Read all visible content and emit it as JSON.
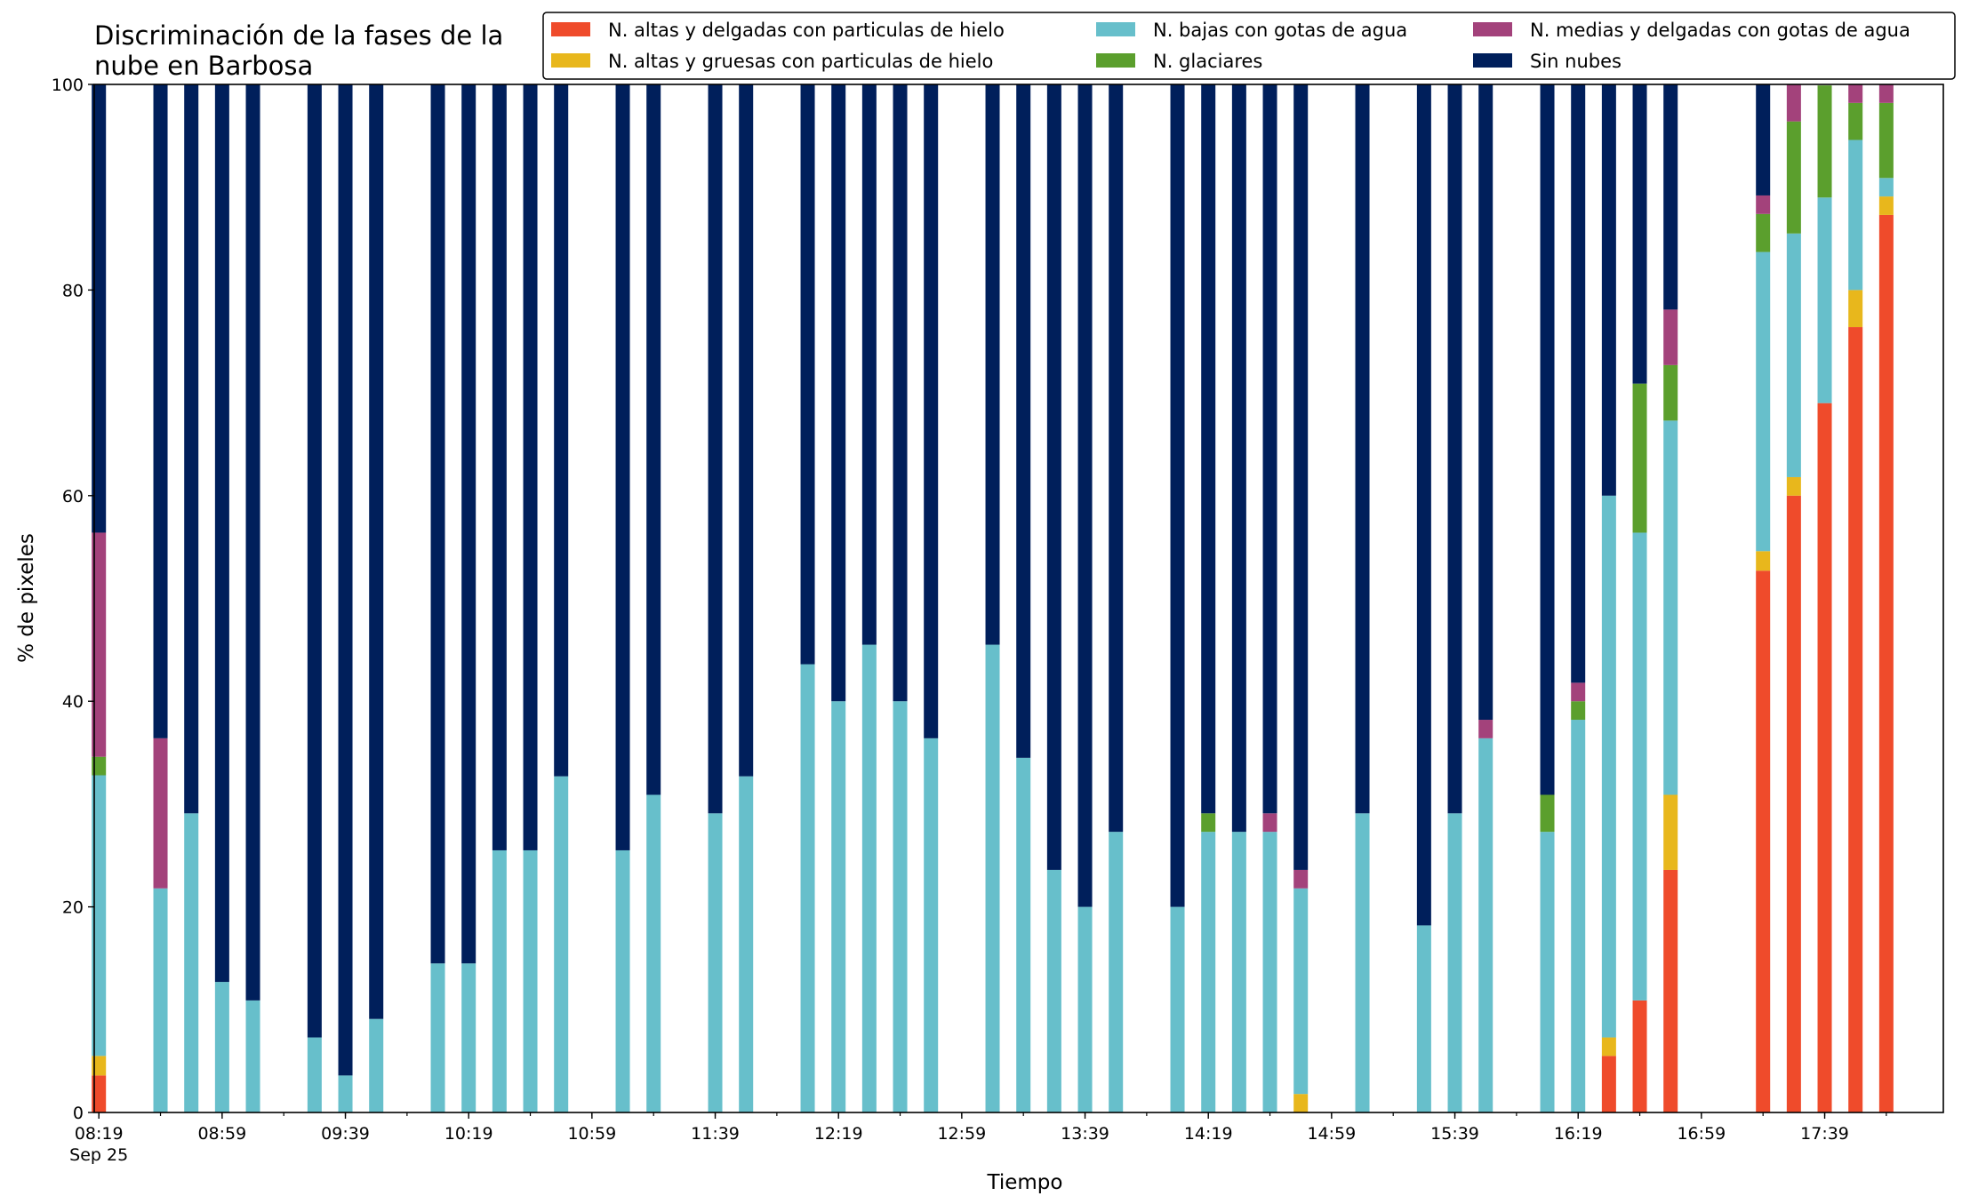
{
  "chart_data": {
    "type": "bar",
    "stacked": true,
    "title_lines": [
      "Discriminación de la fases de la",
      "nube en Barbosa"
    ],
    "xlabel": "Tiempo",
    "ylabel": "% de pixeles",
    "ylim": [
      0,
      100
    ],
    "yticks": [
      0,
      20,
      40,
      60,
      80,
      100
    ],
    "grid": false,
    "legend_position": "top-right",
    "x_minutes": [
      499,
      509,
      519,
      529,
      539,
      549,
      559,
      569,
      579,
      589,
      599,
      609,
      619,
      629,
      639,
      649,
      659,
      669,
      679,
      689,
      699,
      709,
      719,
      729,
      739,
      749,
      759,
      769,
      779,
      789,
      799,
      809,
      819,
      829,
      839,
      849,
      859,
      869,
      879,
      889,
      899,
      909,
      919,
      929,
      939,
      949,
      959,
      969,
      979,
      989,
      999,
      1009,
      1019,
      1029,
      1039,
      1049,
      1059,
      1069,
      1079,
      1089
    ],
    "xticks_major": [
      {
        "minute": 499,
        "label": "08:19",
        "sublabel": "Sep 25"
      },
      {
        "minute": 539,
        "label": "08:59",
        "sublabel": ""
      },
      {
        "minute": 579,
        "label": "09:39",
        "sublabel": ""
      },
      {
        "minute": 619,
        "label": "10:19",
        "sublabel": ""
      },
      {
        "minute": 659,
        "label": "10:59",
        "sublabel": ""
      },
      {
        "minute": 699,
        "label": "11:39",
        "sublabel": ""
      },
      {
        "minute": 739,
        "label": "12:19",
        "sublabel": ""
      },
      {
        "minute": 779,
        "label": "12:59",
        "sublabel": ""
      },
      {
        "minute": 819,
        "label": "13:39",
        "sublabel": ""
      },
      {
        "minute": 859,
        "label": "14:19",
        "sublabel": ""
      },
      {
        "minute": 899,
        "label": "14:59",
        "sublabel": ""
      },
      {
        "minute": 939,
        "label": "15:39",
        "sublabel": ""
      },
      {
        "minute": 979,
        "label": "16:19",
        "sublabel": ""
      },
      {
        "minute": 1019,
        "label": "16:59",
        "sublabel": ""
      },
      {
        "minute": 1059,
        "label": "17:39",
        "sublabel": ""
      }
    ],
    "xlim_minutes": [
      497.5,
      1097.5
    ],
    "series": [
      {
        "name": "N. altas y delgadas con particulas de hielo",
        "color": "#ef4b2b",
        "values": [
          3.6,
          0,
          0,
          0,
          0,
          0,
          0,
          0,
          0,
          0,
          0,
          0,
          0,
          0,
          0,
          0,
          0,
          0,
          0,
          0,
          0,
          0,
          0,
          0,
          0,
          0,
          0,
          0,
          0,
          0,
          0,
          0,
          0,
          0,
          0,
          0,
          0,
          0,
          0,
          0,
          0,
          0,
          0,
          0,
          0,
          0,
          0,
          0,
          0,
          5.5,
          10.9,
          23.6,
          0,
          0,
          52.7,
          60,
          69,
          76.4,
          87.3,
          0
        ]
      },
      {
        "name": "N. altas y gruesas con particulas de hielo",
        "color": "#e8b71c",
        "values": [
          1.9,
          0,
          0,
          0,
          0,
          0,
          0,
          0,
          0,
          0,
          0,
          0,
          0,
          0,
          0,
          0,
          0,
          0,
          0,
          0,
          0,
          0,
          0,
          0,
          0,
          0,
          0,
          0,
          0,
          0,
          0,
          0,
          0,
          0,
          0,
          0,
          0,
          0,
          0,
          1.8,
          0,
          0,
          0,
          0,
          0,
          0,
          0,
          0,
          0,
          1.8,
          0,
          7.3,
          0,
          0,
          1.9,
          1.8,
          0,
          3.6,
          1.8,
          0
        ]
      },
      {
        "name": "N. bajas con gotas de agua",
        "color": "#67bfcb",
        "values": [
          27.3,
          0,
          21.8,
          29.1,
          12.7,
          10.9,
          0,
          7.3,
          3.6,
          9.1,
          0,
          14.5,
          14.5,
          25.5,
          25.5,
          32.7,
          0,
          25.5,
          30.9,
          0,
          29.1,
          32.7,
          0,
          43.6,
          40,
          45.5,
          40,
          36.4,
          0,
          45.5,
          34.5,
          23.6,
          20,
          27.3,
          0,
          20,
          27.3,
          27.3,
          27.3,
          20,
          0,
          29.1,
          0,
          18.2,
          29.1,
          36.4,
          0,
          27.3,
          38.2,
          52.7,
          45.5,
          36.4,
          0,
          0,
          29.1,
          23.7,
          20,
          14.6,
          1.8,
          0
        ]
      },
      {
        "name": "N. glaciares",
        "color": "#5b9f2d",
        "values": [
          1.8,
          0,
          0,
          0,
          0,
          0,
          0,
          0,
          0,
          0,
          0,
          0,
          0,
          0,
          0,
          0,
          0,
          0,
          0,
          0,
          0,
          0,
          0,
          0,
          0,
          0,
          0,
          0,
          0,
          0,
          0,
          0,
          0,
          0,
          0,
          0,
          1.8,
          0,
          0,
          0,
          0,
          0,
          0,
          0,
          0,
          0,
          0,
          3.6,
          1.8,
          0,
          14.5,
          5.4,
          0,
          0,
          3.7,
          10.9,
          10.9,
          3.6,
          7.3,
          0
        ]
      },
      {
        "name": "N. medias y delgadas con gotas de agua",
        "color": "#a3427b",
        "values": [
          21.8,
          0,
          14.6,
          0,
          0,
          0,
          0,
          0,
          0,
          0,
          0,
          0,
          0,
          0,
          0,
          0,
          0,
          0,
          0,
          0,
          0,
          0,
          0,
          0,
          0,
          0,
          0,
          0,
          0,
          0,
          0,
          0,
          0,
          0,
          0,
          0,
          0,
          0,
          1.8,
          1.8,
          0,
          0,
          0,
          0,
          0,
          1.8,
          0,
          0,
          1.8,
          0,
          0,
          5.4,
          0,
          0,
          1.8,
          3.6,
          0,
          1.8,
          1.8,
          0
        ]
      },
      {
        "name": "Sin nubes",
        "color": "#001f5b",
        "values": [
          43.6,
          0,
          63.6,
          70.9,
          87.3,
          89.1,
          0,
          92.7,
          96.4,
          90.9,
          0,
          85.5,
          85.5,
          74.5,
          74.5,
          67.3,
          0,
          74.5,
          69.1,
          0,
          70.9,
          67.3,
          0,
          56.4,
          60,
          54.5,
          60,
          63.6,
          0,
          54.5,
          65.5,
          76.4,
          80,
          72.7,
          0,
          80,
          70.9,
          72.7,
          70.9,
          76.4,
          0,
          70.9,
          0,
          81.8,
          70.9,
          61.8,
          0,
          69.1,
          58.2,
          40,
          29.1,
          21.9,
          0,
          0,
          10.8,
          0,
          0,
          0,
          0,
          0
        ]
      }
    ]
  }
}
